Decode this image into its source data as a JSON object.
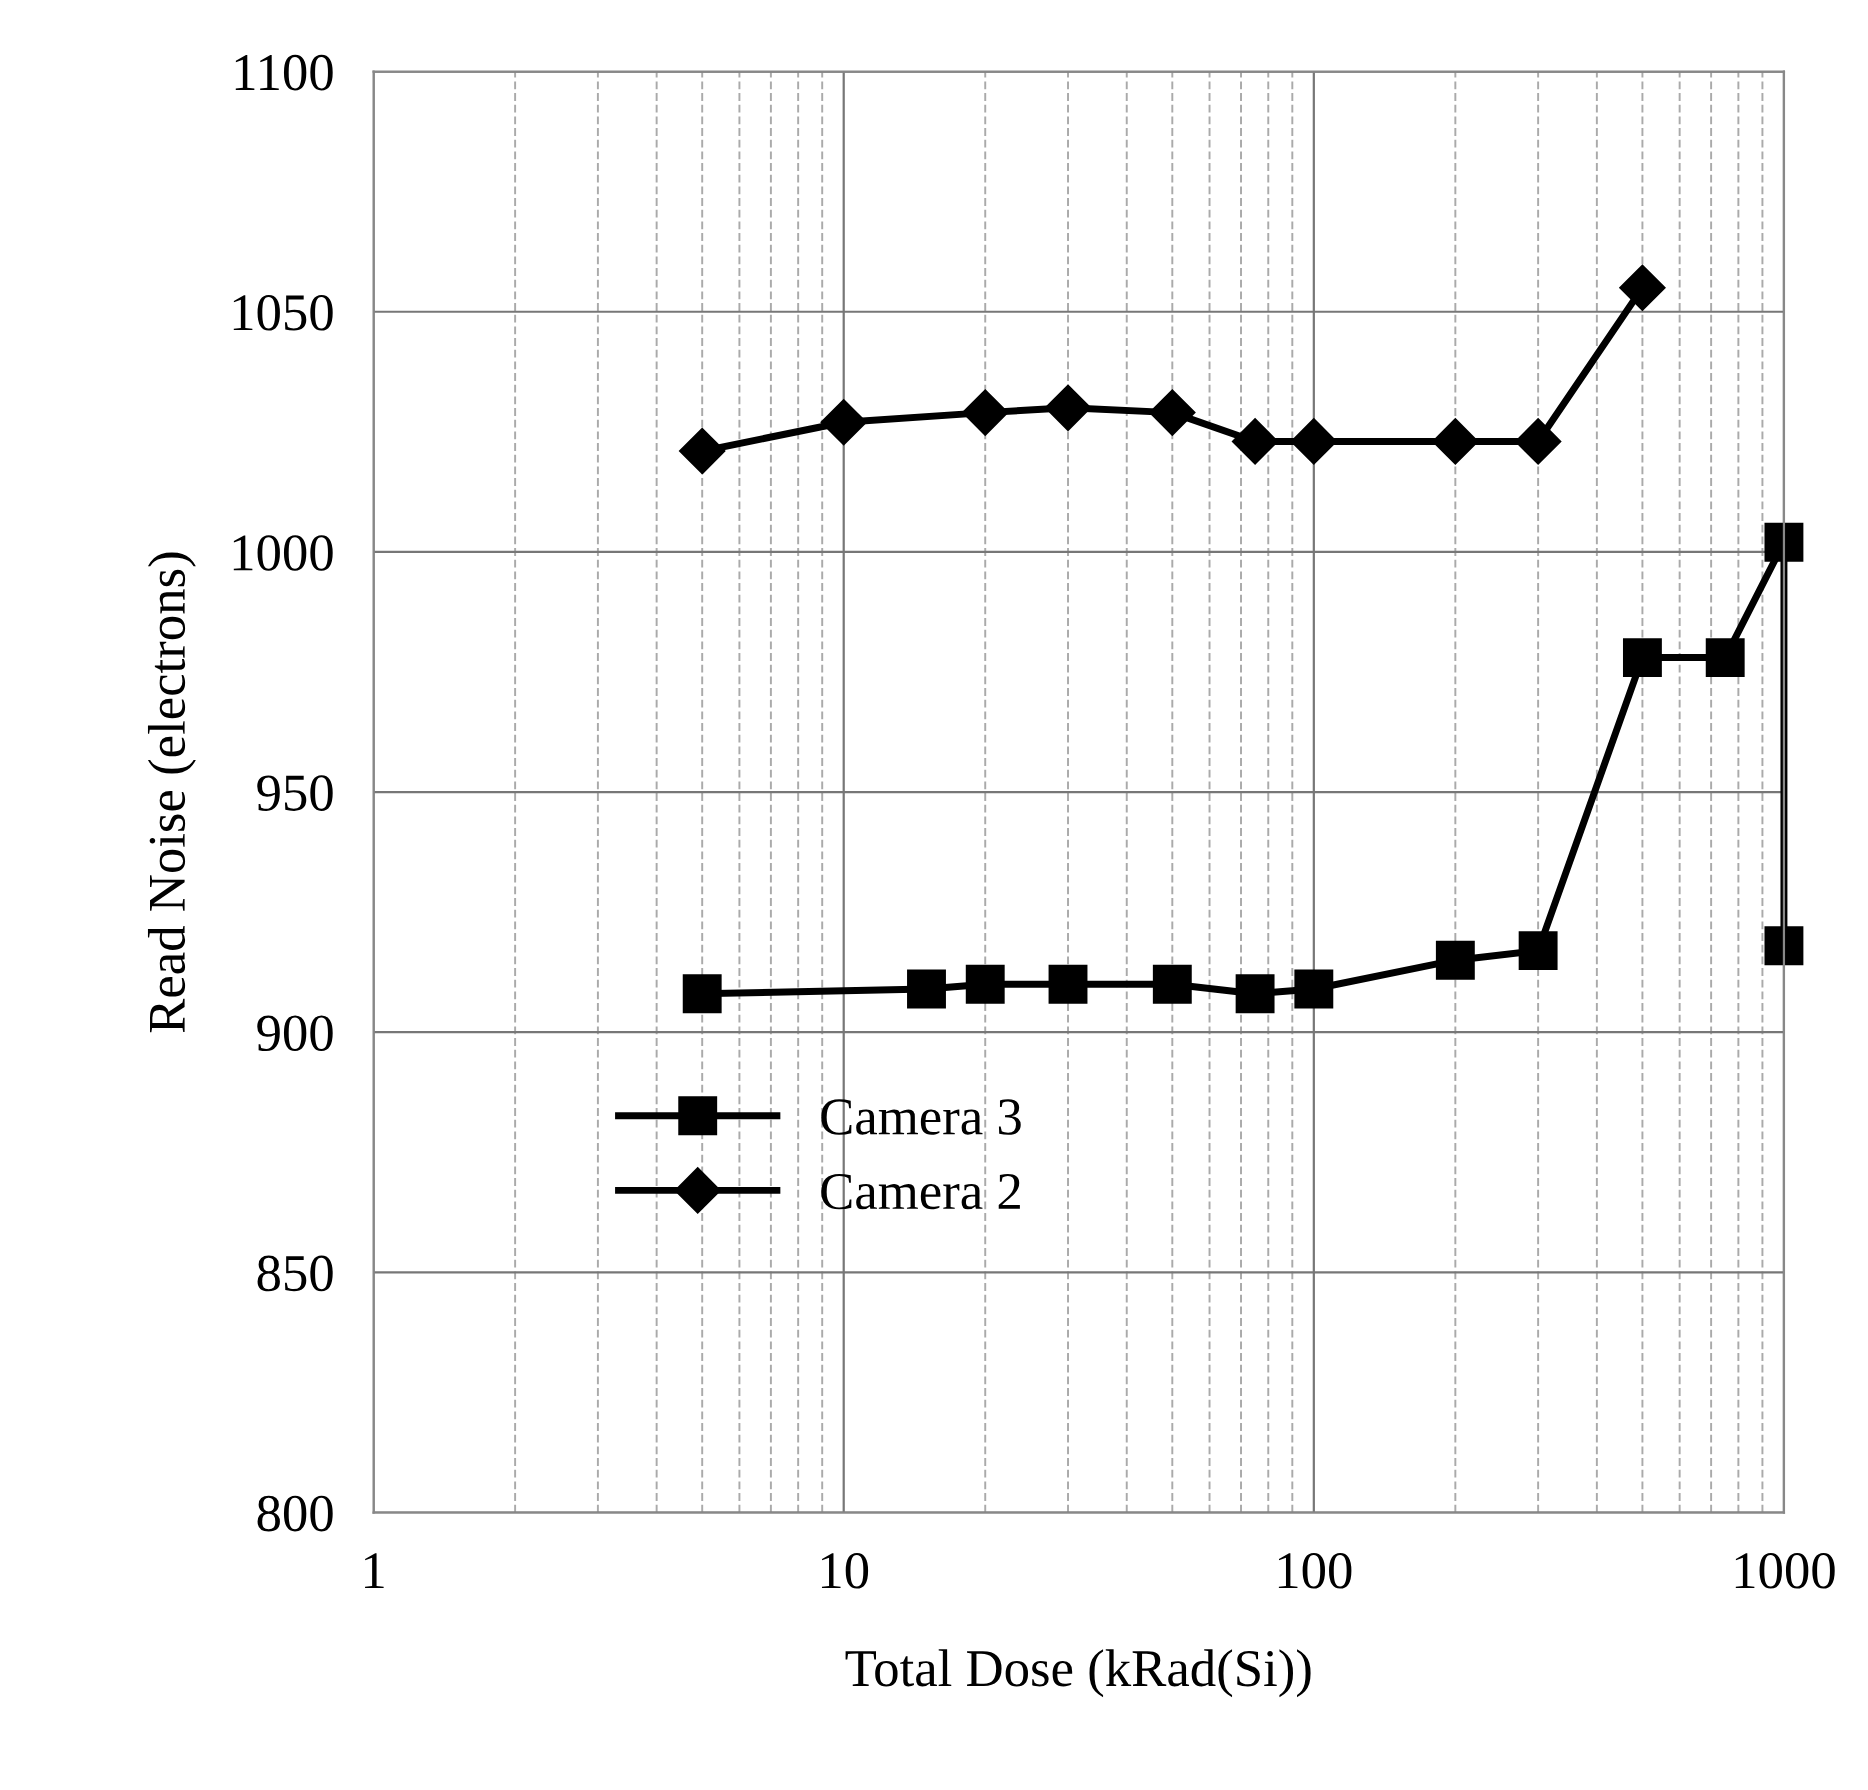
{
  "chart_data": {
    "type": "line",
    "xlabel": "Total Dose (kRad(Si))",
    "ylabel": "Read Noise (electrons)",
    "log": "x",
    "xlim": [
      1,
      1000
    ],
    "xticks": [
      1,
      10,
      100,
      1000
    ],
    "ylim": [
      800,
      1100
    ],
    "yticks": [
      800,
      850,
      900,
      950,
      1000,
      1050,
      1100
    ],
    "grid": true,
    "legend": "bottom left",
    "line_style": "solid",
    "series": [
      {
        "name": "Camera 3",
        "color": "#000000",
        "marker": "square",
        "x": [
          5,
          15,
          20,
          30,
          50,
          75,
          100,
          200,
          300,
          500,
          750,
          1000,
          1000
        ],
        "values": [
          908,
          909,
          910,
          910,
          910,
          908,
          909,
          915,
          917,
          978,
          978,
          1002,
          918
        ]
      },
      {
        "name": "Camera 2",
        "color": "#000000",
        "marker": "diamond",
        "x": [
          5,
          10,
          20,
          30,
          50,
          75,
          100,
          200,
          300,
          500
        ],
        "values": [
          1021,
          1027,
          1029,
          1030,
          1029,
          1023,
          1023,
          1023,
          1023,
          1055
        ]
      }
    ]
  }
}
